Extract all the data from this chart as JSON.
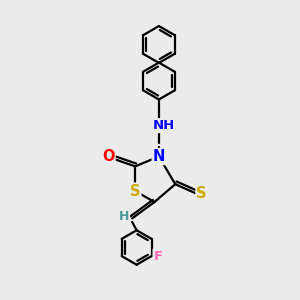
{
  "background_color": "#ebebeb",
  "atom_colors": {
    "C": "#000000",
    "H": "#4a9a9a",
    "N": "#0000ff",
    "O": "#ff0000",
    "S": "#ccaa00",
    "F": "#ff69b4"
  },
  "bond_color": "#000000",
  "bond_width": 1.6,
  "font_size": 9.5,
  "fig_width": 3.0,
  "fig_height": 3.0,
  "dpi": 100
}
